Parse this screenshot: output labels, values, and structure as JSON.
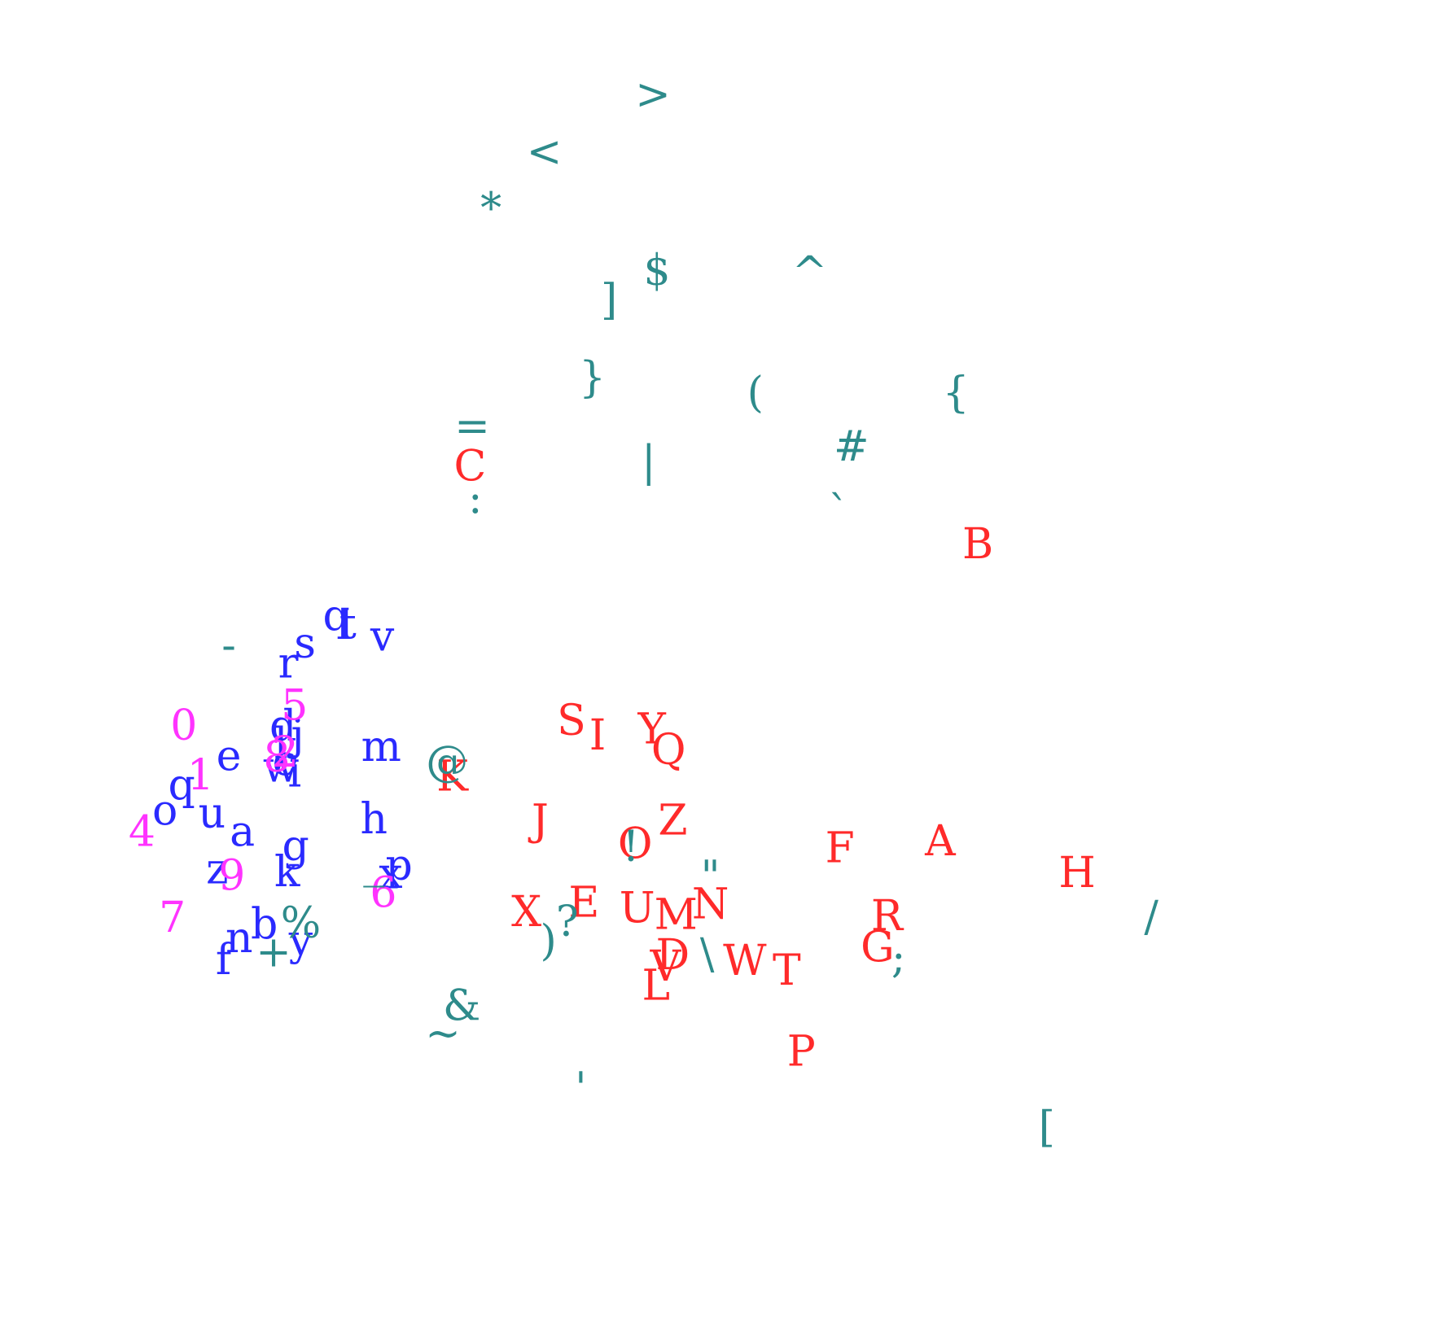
{
  "chart_data": {
    "type": "scatter",
    "marker": "text",
    "title": "",
    "xlabel": "",
    "ylabel": "",
    "xlim": [
      -6.0,
      6.0
    ],
    "ylim": [
      -6.0,
      6.0
    ],
    "axes_visible": false,
    "grid": false,
    "colors": {
      "lowercase": "#2a2aff",
      "digits": "#ff33ff",
      "uppercase": "#ff2a2a",
      "symbols": "#2e8b8b"
    },
    "series": [
      {
        "group": "lowercase",
        "color": "#2a2aff",
        "points": [
          {
            "label": "a",
            "x": -4.46,
            "y": -1.71
          },
          {
            "label": "b",
            "x": -4.25,
            "y": -2.68
          },
          {
            "label": "c",
            "x": -4.06,
            "y": -0.97
          },
          {
            "label": "d",
            "x": -4.07,
            "y": -0.61
          },
          {
            "label": "e",
            "x": -4.59,
            "y": -0.92
          },
          {
            "label": "f",
            "x": -4.64,
            "y": -3.05
          },
          {
            "label": "g",
            "x": -3.95,
            "y": -1.86
          },
          {
            "label": "h",
            "x": -3.2,
            "y": -1.58
          },
          {
            "label": "i",
            "x": -3.96,
            "y": -1.09
          },
          {
            "label": "j",
            "x": -3.93,
            "y": -0.7
          },
          {
            "label": "k",
            "x": -4.03,
            "y": -2.13
          },
          {
            "label": "l",
            "x": -4.09,
            "y": -0.79
          },
          {
            "label": "m",
            "x": -3.13,
            "y": -0.82
          },
          {
            "label": "n",
            "x": -4.49,
            "y": -2.82
          },
          {
            "label": "o",
            "x": -5.2,
            "y": -1.49
          },
          {
            "label": "p",
            "x": -2.96,
            "y": -2.06
          },
          {
            "label": "q",
            "x": -3.56,
            "y": 0.55
          },
          {
            "label": "q",
            "x": -5.04,
            "y": -1.22
          },
          {
            "label": "r",
            "x": -4.02,
            "y": 0.05
          },
          {
            "label": "s",
            "x": -3.86,
            "y": 0.26
          },
          {
            "label": "t",
            "x": -3.45,
            "y": 0.46
          },
          {
            "label": "u",
            "x": -4.75,
            "y": -1.52
          },
          {
            "label": "v",
            "x": -3.12,
            "y": 0.33
          },
          {
            "label": "w",
            "x": -4.09,
            "y": -1.04
          },
          {
            "label": "x",
            "x": -3.04,
            "y": -2.15
          },
          {
            "label": "y",
            "x": -3.9,
            "y": -2.85
          },
          {
            "label": "z",
            "x": -4.7,
            "y": -2.1
          }
        ]
      },
      {
        "group": "digits",
        "color": "#ff33ff",
        "points": [
          {
            "label": "0",
            "x": -5.02,
            "y": -0.6
          },
          {
            "label": "1",
            "x": -4.86,
            "y": -1.12
          },
          {
            "label": "2",
            "x": -4.05,
            "y": -0.88
          },
          {
            "label": "4",
            "x": -5.42,
            "y": -1.71
          },
          {
            "label": "5",
            "x": -3.96,
            "y": -0.39
          },
          {
            "label": "6",
            "x": -3.11,
            "y": -2.35
          },
          {
            "label": "7",
            "x": -5.13,
            "y": -2.61
          },
          {
            "label": "8",
            "x": -4.13,
            "y": -0.93
          },
          {
            "label": "9",
            "x": -4.56,
            "y": -2.17
          }
        ]
      },
      {
        "group": "uppercase",
        "color": "#ff2a2a",
        "points": [
          {
            "label": "A",
            "x": 2.22,
            "y": -1.81
          },
          {
            "label": "B",
            "x": 2.58,
            "y": 1.3
          },
          {
            "label": "C",
            "x": -2.28,
            "y": 2.11
          },
          {
            "label": "D",
            "x": -0.34,
            "y": -3.0
          },
          {
            "label": "E",
            "x": -1.19,
            "y": -2.45
          },
          {
            "label": "F",
            "x": 1.26,
            "y": -1.88
          },
          {
            "label": "G",
            "x": 1.62,
            "y": -2.92
          },
          {
            "label": "H",
            "x": 3.53,
            "y": -2.14
          },
          {
            "label": "I",
            "x": -1.06,
            "y": -0.7
          },
          {
            "label": "J",
            "x": -1.61,
            "y": -1.59
          },
          {
            "label": "K",
            "x": -2.45,
            "y": -1.13
          },
          {
            "label": "L",
            "x": -0.5,
            "y": -3.32
          },
          {
            "label": "M",
            "x": -0.31,
            "y": -2.58
          },
          {
            "label": "N",
            "x": 0.02,
            "y": -2.47
          },
          {
            "label": "O",
            "x": -0.7,
            "y": -1.84
          },
          {
            "label": "P",
            "x": 0.89,
            "y": -4.01
          },
          {
            "label": "Q",
            "x": -0.38,
            "y": -0.85
          },
          {
            "label": "R",
            "x": 1.71,
            "y": -2.59
          },
          {
            "label": "S",
            "x": -1.31,
            "y": -0.55
          },
          {
            "label": "T",
            "x": 0.75,
            "y": -3.16
          },
          {
            "label": "U",
            "x": -0.68,
            "y": -2.51
          },
          {
            "label": "V",
            "x": -0.41,
            "y": -3.12
          },
          {
            "label": "W",
            "x": 0.35,
            "y": -3.06
          },
          {
            "label": "X",
            "x": -1.74,
            "y": -2.55
          },
          {
            "label": "Y",
            "x": -0.54,
            "y": -0.64
          },
          {
            "label": "Z",
            "x": -0.34,
            "y": -1.59
          }
        ]
      },
      {
        "group": "symbols",
        "color": "#2e8b8b",
        "points": [
          {
            "label": ">",
            "x": -0.53,
            "y": 6.0
          },
          {
            "label": "<",
            "x": -1.57,
            "y": 5.4
          },
          {
            "label": "*",
            "x": -2.08,
            "y": 4.81
          },
          {
            "label": "$",
            "x": -0.49,
            "y": 4.16
          },
          {
            "label": "^",
            "x": 0.97,
            "y": 4.14
          },
          {
            "label": "]",
            "x": -0.95,
            "y": 3.85
          },
          {
            "label": "}",
            "x": -1.11,
            "y": 3.04
          },
          {
            "label": "(",
            "x": 0.45,
            "y": 2.88
          },
          {
            "label": "{",
            "x": 2.37,
            "y": 2.88
          },
          {
            "label": "=",
            "x": -2.26,
            "y": 2.53
          },
          {
            "label": "#",
            "x": 1.37,
            "y": 2.32
          },
          {
            "label": "|",
            "x": -0.57,
            "y": 2.16
          },
          {
            "label": "`",
            "x": 1.25,
            "y": 1.63
          },
          {
            "label": ":",
            "x": -2.23,
            "y": 1.77
          },
          {
            "label": "@",
            "x": -2.5,
            "y": -0.98
          },
          {
            "label": "!",
            "x": -0.74,
            "y": -1.87
          },
          {
            "label": "\"",
            "x": 0.02,
            "y": -2.18
          },
          {
            "label": "?",
            "x": -1.35,
            "y": -2.65
          },
          {
            "label": ")",
            "x": -1.53,
            "y": -2.85
          },
          {
            "label": "%",
            "x": -3.9,
            "y": -2.67
          },
          {
            "label": "+",
            "x": -4.16,
            "y": -2.97
          },
          {
            "label": "_",
            "x": -3.2,
            "y": -2.04
          },
          {
            "label": "-",
            "x": -4.59,
            "y": 0.24
          },
          {
            "label": "\\",
            "x": -0.01,
            "y": -2.99
          },
          {
            "label": ";",
            "x": 1.82,
            "y": -3.03
          },
          {
            "label": "/",
            "x": 4.24,
            "y": -2.6
          },
          {
            "label": "&",
            "x": -2.36,
            "y": -3.53
          },
          {
            "label": "~",
            "x": -2.54,
            "y": -3.82
          },
          {
            "label": "'",
            "x": -1.22,
            "y": -4.39
          },
          {
            "label": "[",
            "x": 3.24,
            "y": -4.8
          }
        ]
      }
    ]
  }
}
